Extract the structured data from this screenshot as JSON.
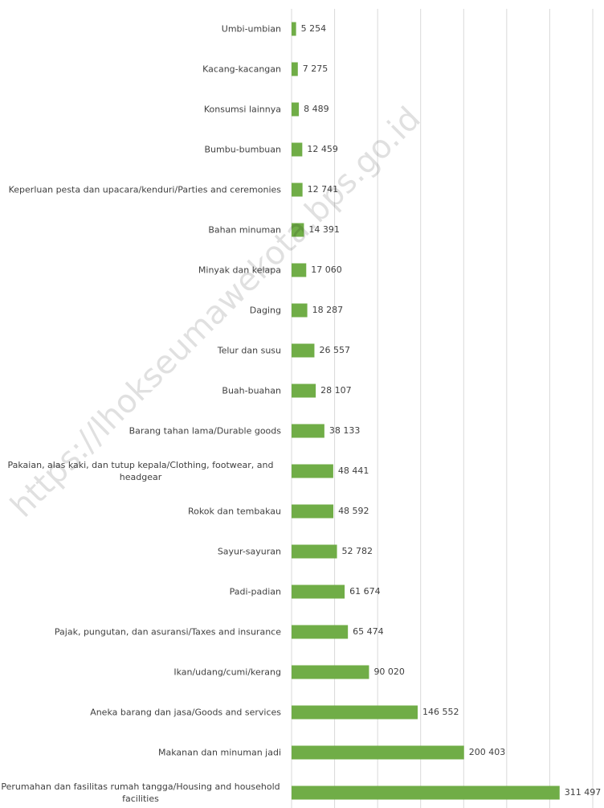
{
  "chart_data": {
    "type": "bar",
    "orientation": "horizontal",
    "categories": [
      "Umbi-umbian",
      "Kacang-kacangan",
      "Konsumsi lainnya",
      "Bumbu-bumbuan",
      "Keperluan pesta dan upacara/kenduri/Parties and ceremonies",
      "Bahan minuman",
      "Minyak dan kelapa",
      "Daging",
      "Telur dan susu",
      "Buah-buahan",
      "Barang tahan lama/Durable goods",
      "Pakaian, alas kaki, dan tutup kepala/Clothing, footwear, and headgear",
      "Rokok dan tembakau",
      "Sayur-sayuran",
      "Padi-padian",
      "Pajak, pungutan, dan asuransi/Taxes and insurance",
      "Ikan/udang/cumi/kerang",
      "Aneka barang dan jasa/Goods and services",
      "Makanan dan minuman jadi",
      "Perumahan dan fasilitas rumah tangga/Housing and household facilities"
    ],
    "values": [
      5254,
      7275,
      8489,
      12459,
      12741,
      14391,
      17060,
      18287,
      26557,
      28107,
      38133,
      48441,
      48592,
      52782,
      61674,
      65474,
      90020,
      146552,
      200403,
      311497
    ],
    "value_labels": [
      "5 254",
      "7 275",
      "8 489",
      "12 459",
      "12 741",
      "14 391",
      "17 060",
      "18 287",
      "26 557",
      "28 107",
      "38 133",
      "48 441",
      "48 592",
      "52 782",
      "61 674",
      "65 474",
      "90 020",
      "146 552",
      "200 403",
      "311 497"
    ],
    "color": "#70ad47",
    "xlim": [
      0,
      350000
    ],
    "xticks": [
      0,
      50000,
      100000,
      150000,
      200000,
      250000,
      300000,
      350000
    ],
    "grid": true,
    "watermark": "https://lhokseumawekota.bps.go.id"
  }
}
